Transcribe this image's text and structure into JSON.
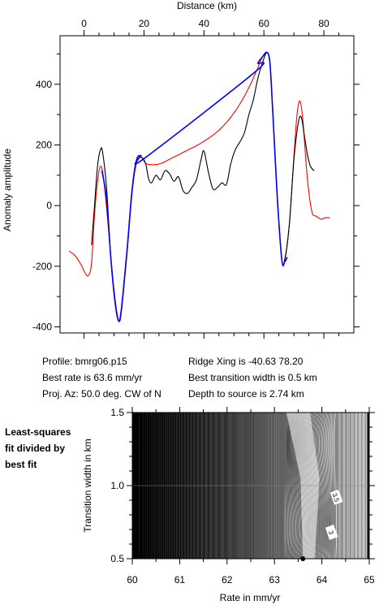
{
  "info": {
    "profile": "Profile: bmrg06.p15",
    "best_rate": "Best rate is 63.6 mm/yr",
    "proj_az": "Proj. Az: 50.0 deg. CW of N",
    "ridge_xing": "Ridge Xing is -40.63 78.20",
    "transition": "Best transition width is 0.5 km",
    "depth": "Depth to source is   2.74 km"
  },
  "side_label": [
    "Least-squares",
    "fit divided by",
    "best fit"
  ],
  "colors": {
    "observed": "#000000",
    "model": "#ff0000",
    "fit": "#0000ff"
  },
  "chart_data": [
    {
      "type": "line",
      "xlabel": "Distance (km)",
      "ylabel": "Anomaly amplitude",
      "xlim": [
        -8,
        90
      ],
      "ylim": [
        -420,
        560
      ],
      "xticks": [
        0,
        20,
        40,
        60,
        80
      ],
      "yticks": [
        -400,
        -200,
        0,
        200,
        400
      ],
      "x_axis_position": "top",
      "series": [
        {
          "color": "observed",
          "x": [
            2.5,
            3.5,
            4.5,
            5.5,
            6.2,
            7.5,
            9,
            10.5,
            11.8,
            13,
            14.5,
            16,
            17.5,
            19,
            20.5,
            21.5,
            22.5,
            24,
            25.5,
            27,
            28.5,
            30,
            31.5,
            33,
            34.5,
            36,
            37.5,
            39,
            40,
            41.5,
            43,
            44.5,
            46,
            47.5,
            49,
            50.5,
            52,
            53.5,
            55,
            56.5,
            58,
            59.5,
            61,
            62,
            63,
            64.5,
            66,
            67,
            68.5,
            70,
            71.5,
            72.5,
            73.5,
            74.5,
            75.5,
            76.8
          ],
          "y": [
            -130,
            0,
            130,
            185,
            175,
            60,
            -180,
            -330,
            -380,
            -290,
            -130,
            50,
            150,
            160,
            140,
            90,
            75,
            100,
            85,
            115,
            105,
            80,
            95,
            50,
            40,
            60,
            85,
            150,
            180,
            110,
            55,
            60,
            75,
            70,
            140,
            185,
            210,
            240,
            300,
            350,
            420,
            470,
            505,
            470,
            300,
            20,
            -180,
            -175,
            -60,
            150,
            275,
            290,
            230,
            170,
            130,
            115
          ]
        },
        {
          "color": "model",
          "x": [
            -5,
            -3,
            -1,
            0.5,
            1.5,
            2.5,
            3.5,
            4.5,
            5.5,
            6.5,
            8,
            9.5,
            11,
            12,
            13,
            14.5,
            16,
            17.5,
            19,
            20.5,
            22,
            24,
            26,
            28,
            30,
            32,
            34,
            36,
            38,
            40,
            42,
            44,
            46,
            48,
            50,
            52,
            54,
            56,
            58,
            59.5,
            61,
            62,
            63,
            64.5,
            66,
            67,
            68.5,
            70,
            71,
            72,
            73,
            74.5,
            76,
            77.5,
            79,
            80.5,
            82
          ],
          "y": [
            -150,
            -165,
            -195,
            -225,
            -230,
            -190,
            -30,
            80,
            130,
            90,
            -60,
            -230,
            -355,
            -380,
            -300,
            -140,
            40,
            140,
            160,
            140,
            135,
            135,
            140,
            150,
            160,
            170,
            180,
            190,
            200,
            212,
            225,
            240,
            258,
            280,
            305,
            335,
            370,
            410,
            455,
            490,
            505,
            470,
            300,
            20,
            -180,
            -180,
            -60,
            160,
            295,
            345,
            280,
            90,
            -20,
            -35,
            -45,
            -40,
            -40
          ]
        },
        {
          "color": "fit",
          "x": [
            6,
            7.5,
            9,
            10.5,
            11.8,
            13,
            14.5,
            16,
            17.5,
            19,
            20,
            57,
            58,
            59.5,
            61,
            62,
            63,
            64.5,
            66,
            67,
            67.8
          ],
          "y": [
            115,
            20,
            -180,
            -330,
            -380,
            -290,
            -130,
            50,
            150,
            165,
            155,
            440,
            470,
            490,
            505,
            470,
            300,
            20,
            -180,
            -185,
            -170
          ]
        }
      ]
    },
    {
      "type": "heatmap",
      "xlabel": "Rate in mm/yr",
      "ylabel": "Transition width in km",
      "xlim": [
        60,
        65
      ],
      "ylim": [
        0.5,
        1.5
      ],
      "xticks": [
        60,
        61,
        62,
        63,
        64,
        65
      ],
      "yticks": [
        0.5,
        1.0,
        1.5
      ],
      "contour_labels": [
        {
          "text": "3.5",
          "x": 64.3,
          "y": 0.92
        },
        {
          "text": "3",
          "x": 64.2,
          "y": 0.68
        }
      ],
      "best_fit_point": {
        "x": 63.6,
        "y": 0.5
      }
    }
  ]
}
